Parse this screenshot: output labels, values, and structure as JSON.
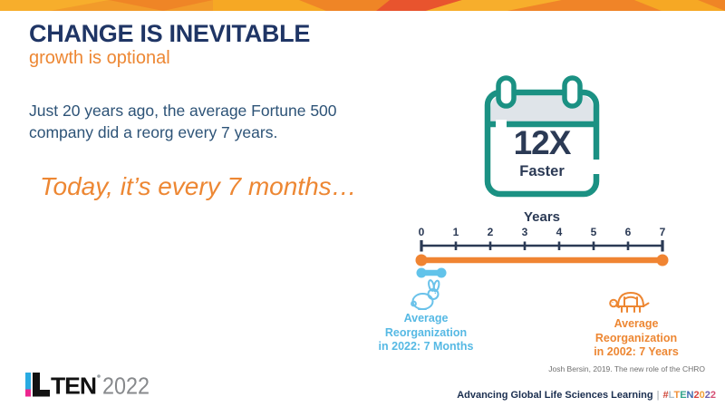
{
  "slide": {
    "title": "CHANGE IS INEVITABLE",
    "subtitle": "growth is optional",
    "body_lines": [
      "Just 20 years ago, the average Fortune 500",
      "company did a reorg every 7 years."
    ],
    "tagline": "Today, it’s every 7 months…"
  },
  "calendar": {
    "multiplier": "12X",
    "label": "Faster",
    "icon": "calendar-icon",
    "accent_color": "#1b9183"
  },
  "chart_data": {
    "type": "line",
    "title": "Years",
    "xlabel": "Years",
    "x_ticks": [
      0,
      1,
      2,
      3,
      4,
      5,
      6,
      7
    ],
    "xlim": [
      0,
      7
    ],
    "axis_color": "#2b3a55",
    "grid": false,
    "series": [
      {
        "name": "Average Reorganization in 2002: 7 Years",
        "start": 0,
        "end": 7,
        "value_label": "7 Years",
        "color": "#f08432"
      },
      {
        "name": "Average Reorganization in 2022: 7 Months",
        "start": 0,
        "end": 0.58,
        "value_label": "7 Months",
        "color": "#62c3ea"
      }
    ]
  },
  "axis_title": "Years",
  "annotations": {
    "fast": {
      "icon": "rabbit-icon",
      "color": "#56b9e4",
      "lines": [
        "Average",
        "Reorganization",
        "in 2022: 7 Months"
      ]
    },
    "slow": {
      "icon": "turtle-icon",
      "color": "#ed8733",
      "lines": [
        "Average",
        "Reorganization",
        "in 2002: 7 Years"
      ]
    }
  },
  "footer": {
    "citation": "Josh Bersin, 2019. The new role of the CHRO",
    "logo_year": "2022",
    "tagline": "Advancing Global Life Sciences Learning",
    "separator": "|",
    "hashtag": {
      "text": "#LTEN2022",
      "chars": [
        {
          "ch": "#",
          "color": "#cf4436"
        },
        {
          "ch": "L",
          "color": "#aebfca"
        },
        {
          "ch": "T",
          "color": "#f0913a"
        },
        {
          "ch": "E",
          "color": "#33a58c"
        },
        {
          "ch": "N",
          "color": "#3b69ad"
        },
        {
          "ch": "2",
          "color": "#d9453f"
        },
        {
          "ch": "0",
          "color": "#f0a13a"
        },
        {
          "ch": "2",
          "color": "#6f61ad"
        },
        {
          "ch": "2",
          "color": "#d64f74"
        }
      ]
    }
  },
  "colors": {
    "navy": "#1f3565",
    "steel_blue": "#2d5377",
    "orange": "#ed8733",
    "teal": "#1b9183",
    "light_blue": "#62c3ea",
    "grey": "#6f6f6f"
  }
}
